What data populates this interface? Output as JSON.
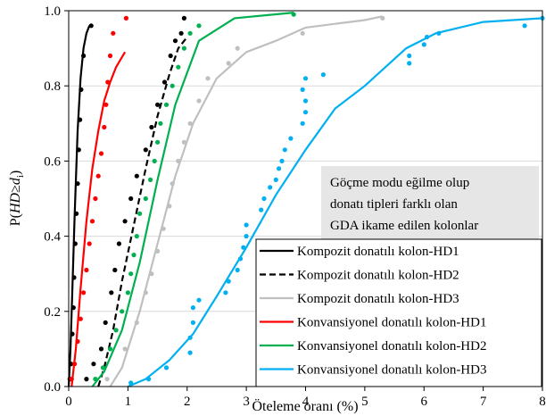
{
  "chart_data": {
    "type": "line",
    "xlabel": "Öteleme oranı (%)",
    "ylabel_parts": [
      "P(",
      "HD",
      "≥",
      "d",
      "i",
      ")"
    ],
    "xlim": [
      0,
      8
    ],
    "ylim": [
      0,
      1
    ],
    "xticks": [
      "0",
      "1",
      "2",
      "3",
      "4",
      "5",
      "6",
      "7",
      "8"
    ],
    "yticks": [
      "0.0",
      "0.2",
      "0.4",
      "0.6",
      "0.8",
      "1.0"
    ],
    "annotation": [
      "Göçme modu eğilme olup",
      "donatı tipleri farklı olan",
      "GDA ikame edilen kolonlar"
    ],
    "legend_position": "bottom-right",
    "series": [
      {
        "name": "Kompozit donatılı kolon-HD1",
        "color": "#000000",
        "dash": "solid",
        "fit": [
          [
            0.0,
            0.0
          ],
          [
            0.03,
            0.1
          ],
          [
            0.06,
            0.25
          ],
          [
            0.1,
            0.45
          ],
          [
            0.15,
            0.68
          ],
          [
            0.2,
            0.82
          ],
          [
            0.25,
            0.9
          ],
          [
            0.3,
            0.94
          ],
          [
            0.35,
            0.96
          ]
        ],
        "points": [
          [
            0.02,
            0.02
          ],
          [
            0.04,
            0.06
          ],
          [
            0.06,
            0.14
          ],
          [
            0.08,
            0.21
          ],
          [
            0.09,
            0.29
          ],
          [
            0.11,
            0.38
          ],
          [
            0.13,
            0.46
          ],
          [
            0.15,
            0.54
          ],
          [
            0.17,
            0.63
          ],
          [
            0.19,
            0.71
          ],
          [
            0.21,
            0.79
          ],
          [
            0.25,
            0.88
          ],
          [
            0.38,
            0.96
          ]
        ]
      },
      {
        "name": "Kompozit donatılı kolon-HD2",
        "color": "#000000",
        "dash": "dashed",
        "fit": [
          [
            0.5,
            0.0
          ],
          [
            0.6,
            0.05
          ],
          [
            0.75,
            0.15
          ],
          [
            0.9,
            0.28
          ],
          [
            1.1,
            0.43
          ],
          [
            1.3,
            0.58
          ],
          [
            1.5,
            0.72
          ],
          [
            1.7,
            0.83
          ],
          [
            1.85,
            0.9
          ],
          [
            2.0,
            0.93
          ]
        ],
        "points": [
          [
            0.3,
            0.02
          ],
          [
            0.42,
            0.06
          ],
          [
            0.55,
            0.1
          ],
          [
            0.62,
            0.17
          ],
          [
            0.72,
            0.25
          ],
          [
            0.78,
            0.31
          ],
          [
            0.85,
            0.38
          ],
          [
            0.95,
            0.44
          ],
          [
            1.05,
            0.5
          ],
          [
            1.15,
            0.56
          ],
          [
            1.3,
            0.63
          ],
          [
            1.4,
            0.69
          ],
          [
            1.5,
            0.75
          ],
          [
            1.62,
            0.81
          ],
          [
            1.72,
            0.88
          ],
          [
            1.8,
            0.92
          ],
          [
            1.9,
            0.94
          ],
          [
            1.95,
            0.98
          ]
        ]
      },
      {
        "name": "Kompozit donatılı kolon-HD3",
        "color": "#bfbfbf",
        "dash": "solid",
        "fit": [
          [
            0.7,
            0.0
          ],
          [
            0.9,
            0.05
          ],
          [
            1.2,
            0.2
          ],
          [
            1.5,
            0.38
          ],
          [
            1.8,
            0.56
          ],
          [
            2.1,
            0.7
          ],
          [
            2.5,
            0.82
          ],
          [
            3.0,
            0.89
          ],
          [
            3.5,
            0.92
          ],
          [
            4.0,
            0.955
          ],
          [
            4.5,
            0.965
          ],
          [
            5.0,
            0.975
          ],
          [
            5.3,
            0.985
          ]
        ],
        "points": [
          [
            0.65,
            0.02
          ],
          [
            0.95,
            0.1
          ],
          [
            1.15,
            0.17
          ],
          [
            1.3,
            0.25
          ],
          [
            1.4,
            0.3
          ],
          [
            1.5,
            0.36
          ],
          [
            1.6,
            0.42
          ],
          [
            1.7,
            0.48
          ],
          [
            1.75,
            0.54
          ],
          [
            1.85,
            0.6
          ],
          [
            1.95,
            0.65
          ],
          [
            2.05,
            0.7
          ],
          [
            2.2,
            0.76
          ],
          [
            2.35,
            0.82
          ],
          [
            2.7,
            0.86
          ],
          [
            2.85,
            0.9
          ],
          [
            3.95,
            0.94
          ],
          [
            5.3,
            0.98
          ]
        ]
      },
      {
        "name": "Konvansiyonel donatılı kolon-HD1",
        "color": "#ff0000",
        "dash": "solid",
        "fit": [
          [
            0.05,
            0.0
          ],
          [
            0.12,
            0.1
          ],
          [
            0.2,
            0.26
          ],
          [
            0.3,
            0.44
          ],
          [
            0.4,
            0.58
          ],
          [
            0.5,
            0.68
          ],
          [
            0.6,
            0.76
          ],
          [
            0.7,
            0.81
          ],
          [
            0.8,
            0.85
          ],
          [
            0.95,
            0.89
          ]
        ],
        "points": [
          [
            0.05,
            0.02
          ],
          [
            0.1,
            0.06
          ],
          [
            0.15,
            0.12
          ],
          [
            0.2,
            0.18
          ],
          [
            0.25,
            0.25
          ],
          [
            0.3,
            0.31
          ],
          [
            0.35,
            0.38
          ],
          [
            0.4,
            0.44
          ],
          [
            0.45,
            0.5
          ],
          [
            0.5,
            0.56
          ],
          [
            0.55,
            0.62
          ],
          [
            0.6,
            0.69
          ],
          [
            0.63,
            0.75
          ],
          [
            0.66,
            0.81
          ],
          [
            0.7,
            0.88
          ],
          [
            0.75,
            0.94
          ],
          [
            0.97,
            0.98
          ]
        ]
      },
      {
        "name": "Konvansiyonel donatılı kolon-HD2",
        "color": "#00b050",
        "dash": "solid",
        "fit": [
          [
            0.4,
            0.0
          ],
          [
            0.6,
            0.04
          ],
          [
            0.9,
            0.15
          ],
          [
            1.2,
            0.33
          ],
          [
            1.5,
            0.55
          ],
          [
            1.8,
            0.75
          ],
          [
            2.2,
            0.92
          ],
          [
            2.8,
            0.98
          ],
          [
            3.8,
            0.995
          ]
        ],
        "points": [
          [
            0.45,
            0.02
          ],
          [
            0.58,
            0.05
          ],
          [
            0.7,
            0.1
          ],
          [
            0.8,
            0.15
          ],
          [
            0.9,
            0.2
          ],
          [
            1.0,
            0.25
          ],
          [
            1.05,
            0.3
          ],
          [
            1.1,
            0.35
          ],
          [
            1.15,
            0.4
          ],
          [
            1.2,
            0.46
          ],
          [
            1.3,
            0.5
          ],
          [
            1.38,
            0.55
          ],
          [
            1.45,
            0.6
          ],
          [
            1.5,
            0.65
          ],
          [
            1.55,
            0.7
          ],
          [
            1.65,
            0.75
          ],
          [
            1.75,
            0.8
          ],
          [
            1.85,
            0.85
          ],
          [
            1.95,
            0.9
          ],
          [
            2.05,
            0.94
          ],
          [
            2.2,
            0.96
          ],
          [
            3.8,
            0.99
          ]
        ]
      },
      {
        "name": "Konvansiyonel donatılı kolon-HD3",
        "color": "#00b0f0",
        "dash": "solid",
        "fit": [
          [
            1.0,
            0.0
          ],
          [
            1.3,
            0.02
          ],
          [
            1.7,
            0.07
          ],
          [
            2.1,
            0.14
          ],
          [
            2.5,
            0.24
          ],
          [
            3.0,
            0.37
          ],
          [
            3.5,
            0.51
          ],
          [
            4.0,
            0.63
          ],
          [
            4.5,
            0.74
          ],
          [
            5.0,
            0.8
          ],
          [
            5.7,
            0.9
          ],
          [
            6.2,
            0.94
          ],
          [
            7.0,
            0.97
          ],
          [
            8.0,
            0.98
          ]
        ],
        "points": [
          [
            1.05,
            0.01
          ],
          [
            1.35,
            0.02
          ],
          [
            1.65,
            0.05
          ],
          [
            2.05,
            0.09
          ],
          [
            2.05,
            0.13
          ],
          [
            2.1,
            0.17
          ],
          [
            2.1,
            0.21
          ],
          [
            2.2,
            0.23
          ],
          [
            2.65,
            0.25
          ],
          [
            2.7,
            0.28
          ],
          [
            2.85,
            0.31
          ],
          [
            2.9,
            0.34
          ],
          [
            2.95,
            0.37
          ],
          [
            3.0,
            0.4
          ],
          [
            3.0,
            0.43
          ],
          [
            3.25,
            0.47
          ],
          [
            3.3,
            0.5
          ],
          [
            3.4,
            0.53
          ],
          [
            3.5,
            0.55
          ],
          [
            3.55,
            0.58
          ],
          [
            3.6,
            0.6
          ],
          [
            3.65,
            0.63
          ],
          [
            3.75,
            0.66
          ],
          [
            3.95,
            0.7
          ],
          [
            4.0,
            0.73
          ],
          [
            4.0,
            0.76
          ],
          [
            3.95,
            0.79
          ],
          [
            4.0,
            0.82
          ],
          [
            4.3,
            0.83
          ],
          [
            5.75,
            0.86
          ],
          [
            5.75,
            0.88
          ],
          [
            6.0,
            0.91
          ],
          [
            6.05,
            0.93
          ],
          [
            6.25,
            0.94
          ],
          [
            7.7,
            0.96
          ],
          [
            8.0,
            0.98
          ]
        ]
      }
    ]
  }
}
